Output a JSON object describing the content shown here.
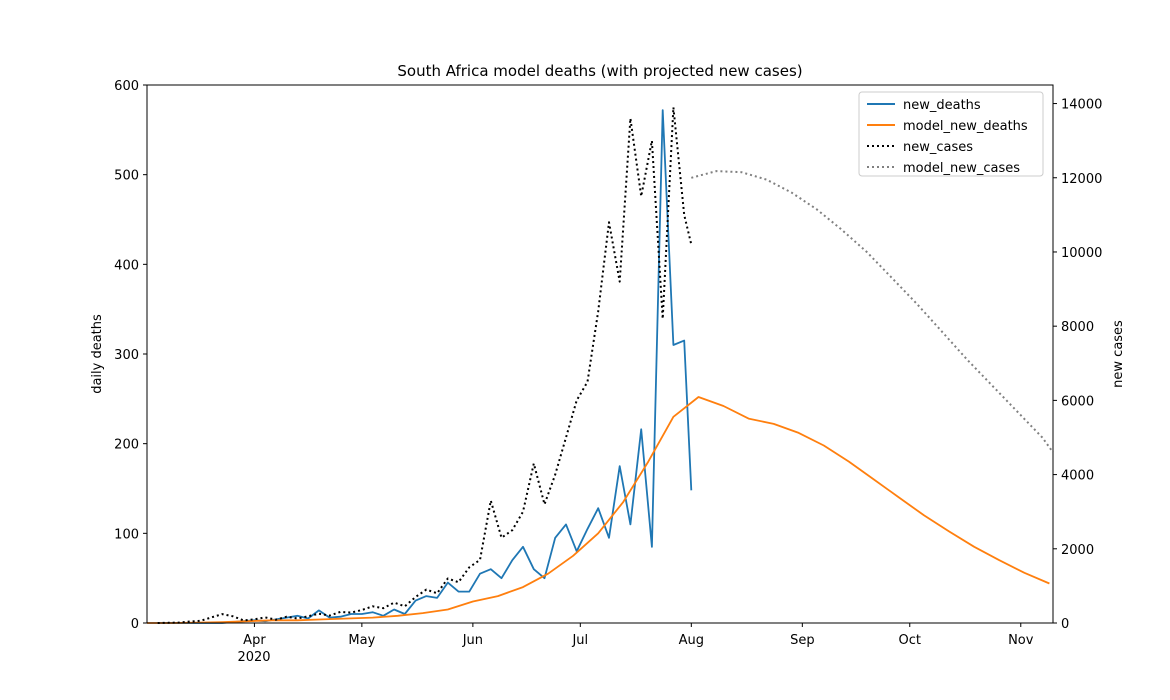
{
  "chart_data": {
    "type": "line",
    "title": "South Africa model deaths (with projected new cases)",
    "ylabel": "daily deaths",
    "y2label": "new cases",
    "x_year_label": "2020",
    "xlim": [
      "2020-03-02",
      "2020-11-10"
    ],
    "xticks": [
      {
        "value": "2020-04-01",
        "label": "Apr"
      },
      {
        "value": "2020-05-01",
        "label": "May"
      },
      {
        "value": "2020-06-01",
        "label": "Jun"
      },
      {
        "value": "2020-07-01",
        "label": "Jul"
      },
      {
        "value": "2020-08-01",
        "label": "Aug"
      },
      {
        "value": "2020-09-01",
        "label": "Sep"
      },
      {
        "value": "2020-10-01",
        "label": "Oct"
      },
      {
        "value": "2020-11-01",
        "label": "Nov"
      }
    ],
    "ylim": [
      0,
      600
    ],
    "yticks": [
      0,
      100,
      200,
      300,
      400,
      500,
      600
    ],
    "y2lim": [
      0,
      14500
    ],
    "y2ticks": [
      0,
      2000,
      4000,
      6000,
      8000,
      10000,
      12000,
      14000
    ],
    "legend": "upper right",
    "series": [
      {
        "name": "new_deaths",
        "color": "#1f77b4",
        "dash": "solid",
        "x": [
          "2020-03-05",
          "2020-03-08",
          "2020-03-11",
          "2020-03-14",
          "2020-03-17",
          "2020-03-20",
          "2020-03-23",
          "2020-03-26",
          "2020-03-29",
          "2020-04-01",
          "2020-04-04",
          "2020-04-07",
          "2020-04-10",
          "2020-04-13",
          "2020-04-16",
          "2020-04-19",
          "2020-04-22",
          "2020-04-25",
          "2020-04-28",
          "2020-05-01",
          "2020-05-04",
          "2020-05-07",
          "2020-05-10",
          "2020-05-13",
          "2020-05-16",
          "2020-05-19",
          "2020-05-22",
          "2020-05-25",
          "2020-05-28",
          "2020-05-31",
          "2020-06-03",
          "2020-06-06",
          "2020-06-09",
          "2020-06-12",
          "2020-06-15",
          "2020-06-18",
          "2020-06-21",
          "2020-06-24",
          "2020-06-27",
          "2020-06-30",
          "2020-07-03",
          "2020-07-06",
          "2020-07-09",
          "2020-07-12",
          "2020-07-15",
          "2020-07-18",
          "2020-07-21",
          "2020-07-24",
          "2020-07-27",
          "2020-07-30",
          "2020-08-01"
        ],
        "values": [
          0,
          0,
          0,
          0,
          0,
          0,
          0,
          1,
          2,
          3,
          2,
          4,
          6,
          8,
          5,
          14,
          6,
          7,
          10,
          10,
          12,
          8,
          15,
          10,
          25,
          30,
          28,
          45,
          35,
          35,
          55,
          60,
          50,
          70,
          85,
          60,
          50,
          95,
          110,
          80,
          105,
          128,
          95,
          175,
          110,
          216,
          85,
          572,
          310,
          315,
          148
        ]
      },
      {
        "name": "model_new_deaths",
        "color": "#ff7f0e",
        "dash": "solid",
        "x": [
          "2020-03-02",
          "2020-03-09",
          "2020-03-16",
          "2020-03-23",
          "2020-03-30",
          "2020-04-06",
          "2020-04-13",
          "2020-04-20",
          "2020-04-27",
          "2020-05-04",
          "2020-05-11",
          "2020-05-18",
          "2020-05-25",
          "2020-06-01",
          "2020-06-08",
          "2020-06-15",
          "2020-06-22",
          "2020-06-29",
          "2020-07-06",
          "2020-07-13",
          "2020-07-20",
          "2020-07-27",
          "2020-08-03",
          "2020-08-10",
          "2020-08-17",
          "2020-08-24",
          "2020-08-31",
          "2020-09-07",
          "2020-09-14",
          "2020-09-21",
          "2020-09-28",
          "2020-10-05",
          "2020-10-12",
          "2020-10-19",
          "2020-10-26",
          "2020-11-02",
          "2020-11-09"
        ],
        "values": [
          0,
          0,
          0.5,
          1,
          2,
          3,
          3,
          4,
          5,
          6,
          8,
          11,
          15,
          24,
          30,
          40,
          55,
          75,
          100,
          135,
          180,
          230,
          252,
          242,
          228,
          222,
          212,
          198,
          180,
          160,
          140,
          120,
          102,
          85,
          70,
          56,
          44
        ]
      },
      {
        "name": "new_cases",
        "color": "#000000",
        "dash": "dotted",
        "axis": "y2",
        "x": [
          "2020-03-05",
          "2020-03-08",
          "2020-03-11",
          "2020-03-14",
          "2020-03-17",
          "2020-03-20",
          "2020-03-23",
          "2020-03-26",
          "2020-03-29",
          "2020-04-01",
          "2020-04-04",
          "2020-04-07",
          "2020-04-10",
          "2020-04-13",
          "2020-04-16",
          "2020-04-19",
          "2020-04-22",
          "2020-04-25",
          "2020-04-28",
          "2020-05-01",
          "2020-05-04",
          "2020-05-07",
          "2020-05-10",
          "2020-05-13",
          "2020-05-16",
          "2020-05-19",
          "2020-05-22",
          "2020-05-25",
          "2020-05-28",
          "2020-05-31",
          "2020-06-03",
          "2020-06-06",
          "2020-06-09",
          "2020-06-12",
          "2020-06-15",
          "2020-06-18",
          "2020-06-21",
          "2020-06-24",
          "2020-06-27",
          "2020-06-30",
          "2020-07-03",
          "2020-07-06",
          "2020-07-09",
          "2020-07-12",
          "2020-07-15",
          "2020-07-18",
          "2020-07-21",
          "2020-07-24",
          "2020-07-27",
          "2020-07-30",
          "2020-08-01"
        ],
        "values": [
          0,
          5,
          10,
          40,
          60,
          150,
          240,
          180,
          70,
          100,
          150,
          90,
          170,
          120,
          180,
          250,
          200,
          300,
          280,
          350,
          450,
          400,
          550,
          450,
          700,
          900,
          800,
          1200,
          1100,
          1500,
          1700,
          3300,
          2300,
          2500,
          3000,
          4300,
          3200,
          4000,
          5000,
          6000,
          6500,
          8400,
          10800,
          9200,
          13600,
          11500,
          13000,
          8200,
          13900,
          11000,
          10200
        ]
      },
      {
        "name": "model_new_cases",
        "color": "#808080",
        "dash": "dotted",
        "axis": "y2",
        "x": [
          "2020-08-01",
          "2020-08-08",
          "2020-08-15",
          "2020-08-22",
          "2020-08-29",
          "2020-09-05",
          "2020-09-12",
          "2020-09-19",
          "2020-09-26",
          "2020-10-03",
          "2020-10-10",
          "2020-10-17",
          "2020-10-24",
          "2020-10-31",
          "2020-11-07",
          "2020-11-10"
        ],
        "values": [
          12000,
          12180,
          12150,
          11950,
          11600,
          11150,
          10600,
          10000,
          9300,
          8600,
          7850,
          7100,
          6400,
          5700,
          5000,
          4600
        ]
      }
    ]
  }
}
